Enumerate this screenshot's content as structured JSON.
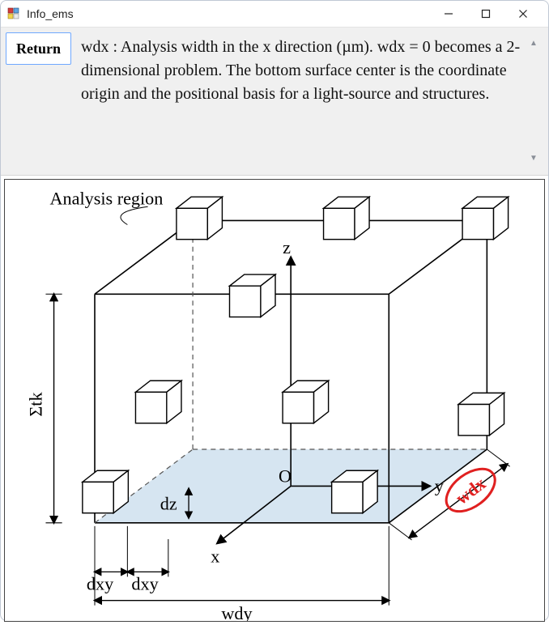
{
  "window": {
    "title": "Info_ems"
  },
  "controls": {
    "return_label": "Return"
  },
  "description": {
    "text": "wdx : Analysis width in the x direction (µm). wdx = 0 becomes a 2-dimensional problem. The bottom surface center is the coordinate origin and the positional basis for a light-source and structures."
  },
  "diagram": {
    "caption_analysis_region": "Analysis region",
    "axis_x": "x",
    "axis_y": "y",
    "axis_z": "z",
    "origin": "O",
    "label_sigma_tk": "Σtk",
    "label_dz": "dz",
    "label_dxy1": "dxy",
    "label_dxy2": "dxy",
    "label_wdy": "wdy",
    "label_wdx": "wdx",
    "colors": {
      "stroke": "#000000",
      "dashed": "#555555",
      "floor_fill": "#cfe0ef",
      "floor_fill_opacity": 0.85,
      "highlight_ellipse": "#e02020",
      "highlight_text": "#e02020",
      "background": "#ffffff"
    },
    "line_widths": {
      "solid": 1.6,
      "dashed": 1.2,
      "arrow": 1.6
    },
    "font_sizes": {
      "labels": 22,
      "big_labels": 26
    }
  }
}
